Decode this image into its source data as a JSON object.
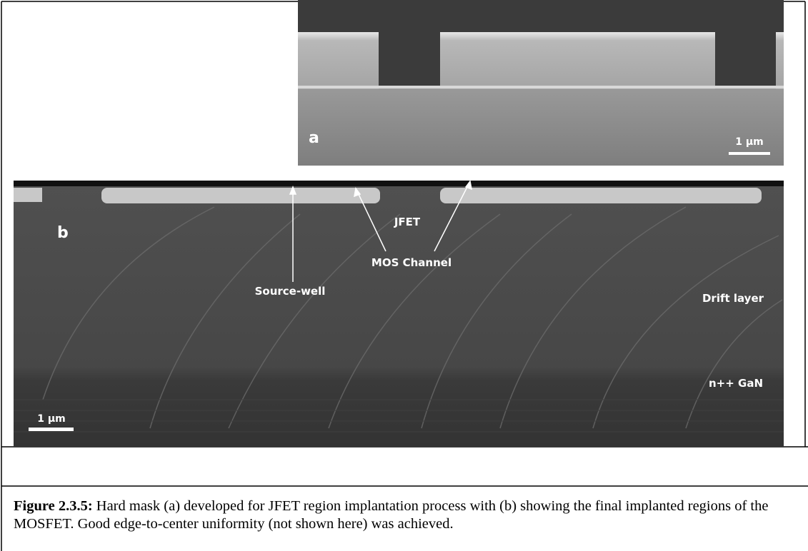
{
  "figure": {
    "panel_a": {
      "label": "a",
      "scale_bar": "1 µm"
    },
    "panel_b": {
      "label": "b",
      "scale_bar": "1 µm",
      "annotations": [
        "JFET",
        "MOS Channel",
        "Source-well",
        "Drift layer",
        "n++ GaN"
      ]
    }
  },
  "caption": {
    "label": "Figure 2.3.5:",
    "text": " Hard mask (a) developed for JFET region implantation process with (b) showing the final implanted regions of the MOSFET. Good edge-to-center uniformity (not shown here) was achieved."
  }
}
